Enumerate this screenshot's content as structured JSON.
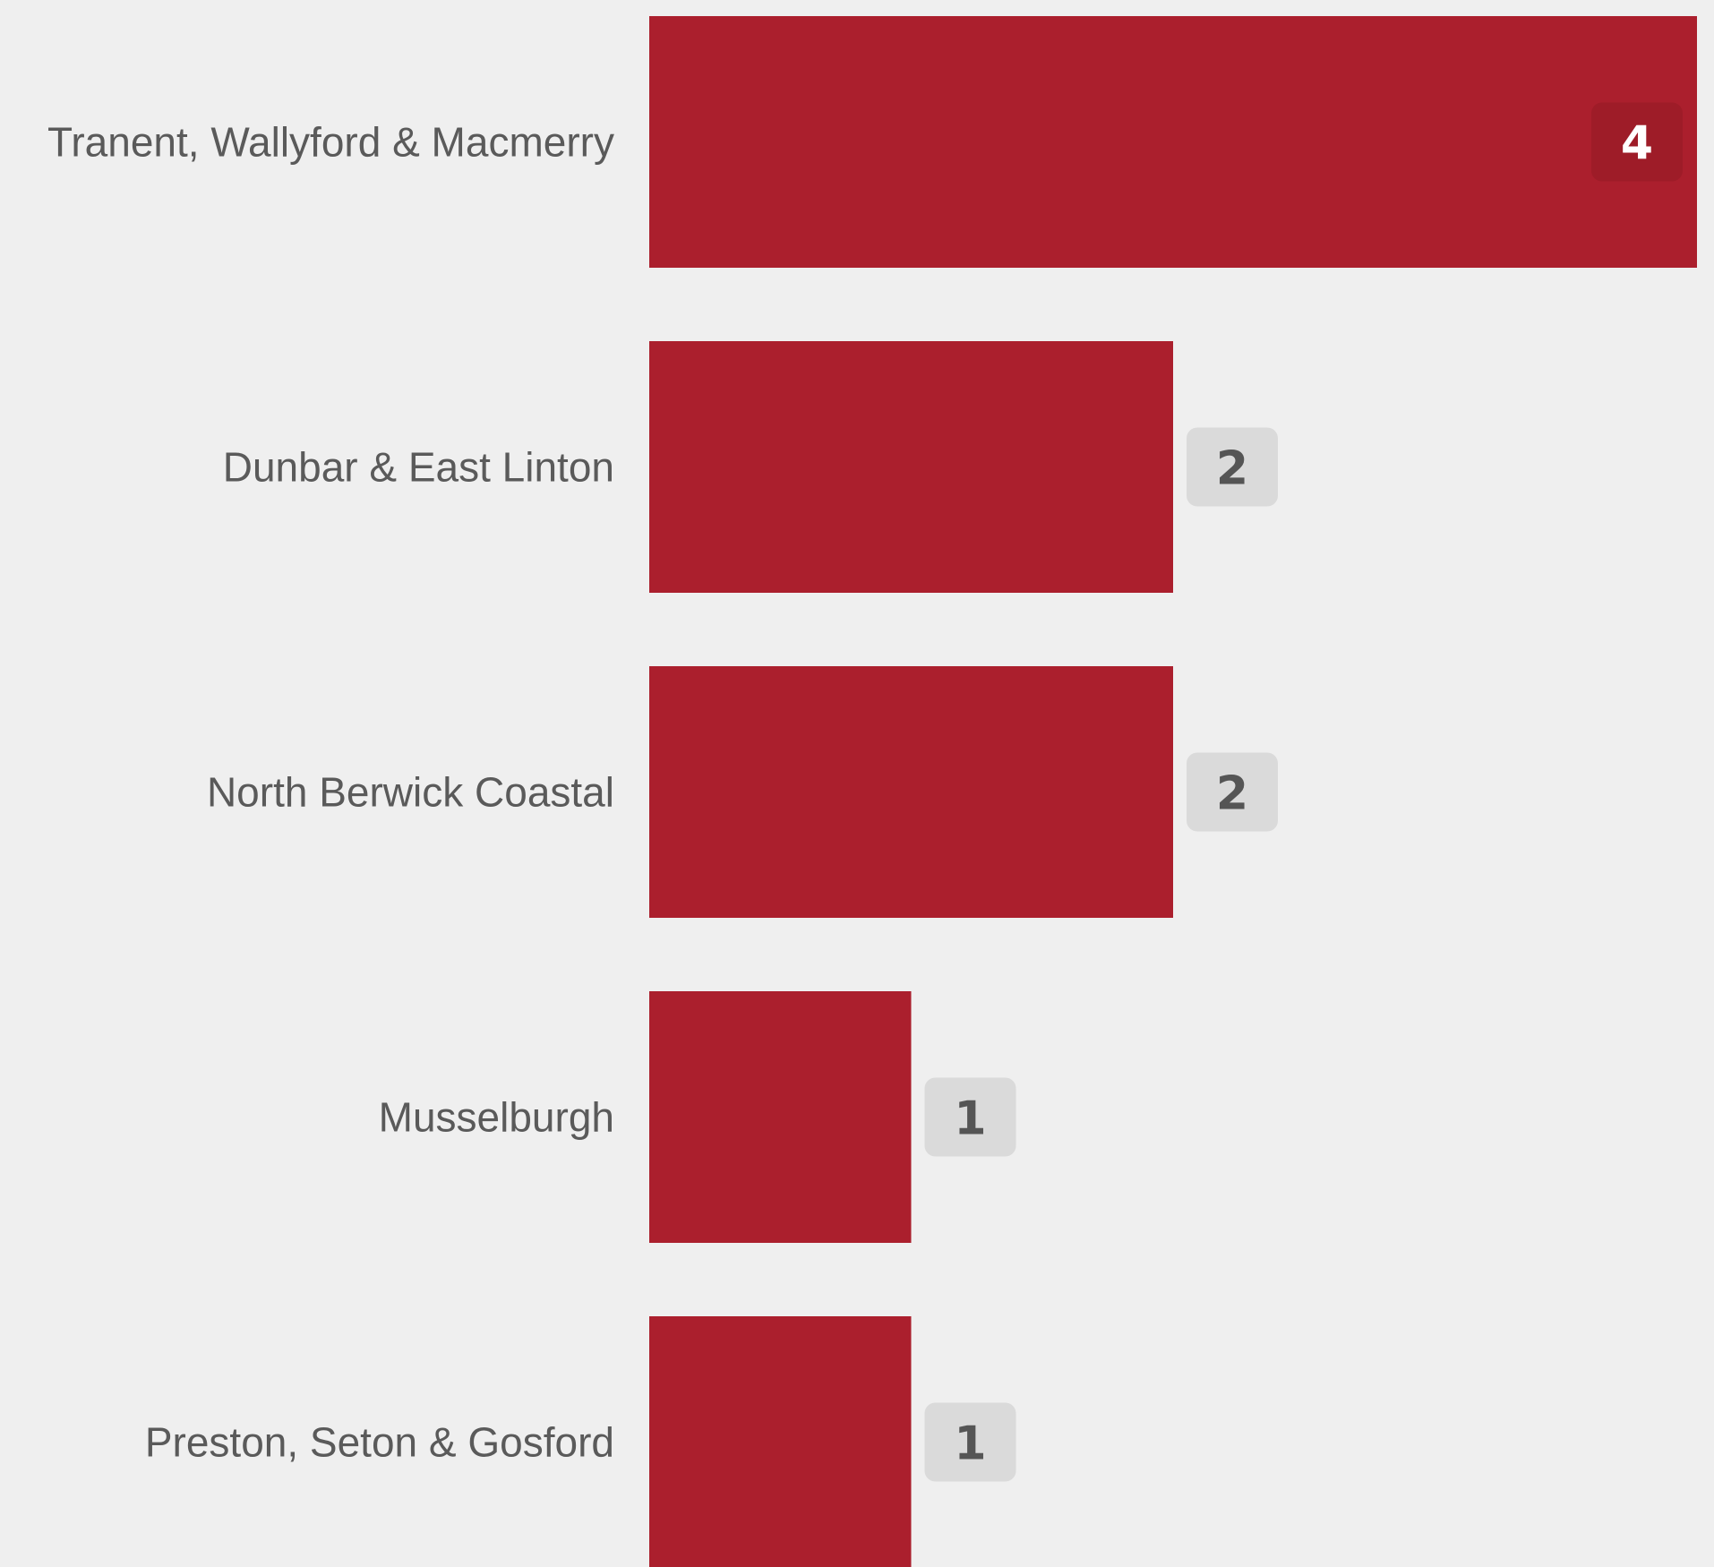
{
  "chart_data": {
    "type": "bar",
    "orientation": "horizontal",
    "categories": [
      "Tranent, Wallyford & Macmerry",
      "Dunbar & East Linton",
      "North Berwick Coastal",
      "Musselburgh",
      "Preston, Seton & Gosford"
    ],
    "values": [
      4,
      2,
      2,
      1,
      1
    ],
    "xlim": [
      0,
      4
    ],
    "grid": false,
    "data_labels": true
  },
  "colors": {
    "background": "#efefef",
    "bar": "#ab1f2d",
    "label_text": "#5a5a5a",
    "badge_outside_bg": "#dadada",
    "badge_outside_text": "#555555",
    "badge_inside_bg": "#9e1c28",
    "badge_inside_text": "#ffffff"
  }
}
